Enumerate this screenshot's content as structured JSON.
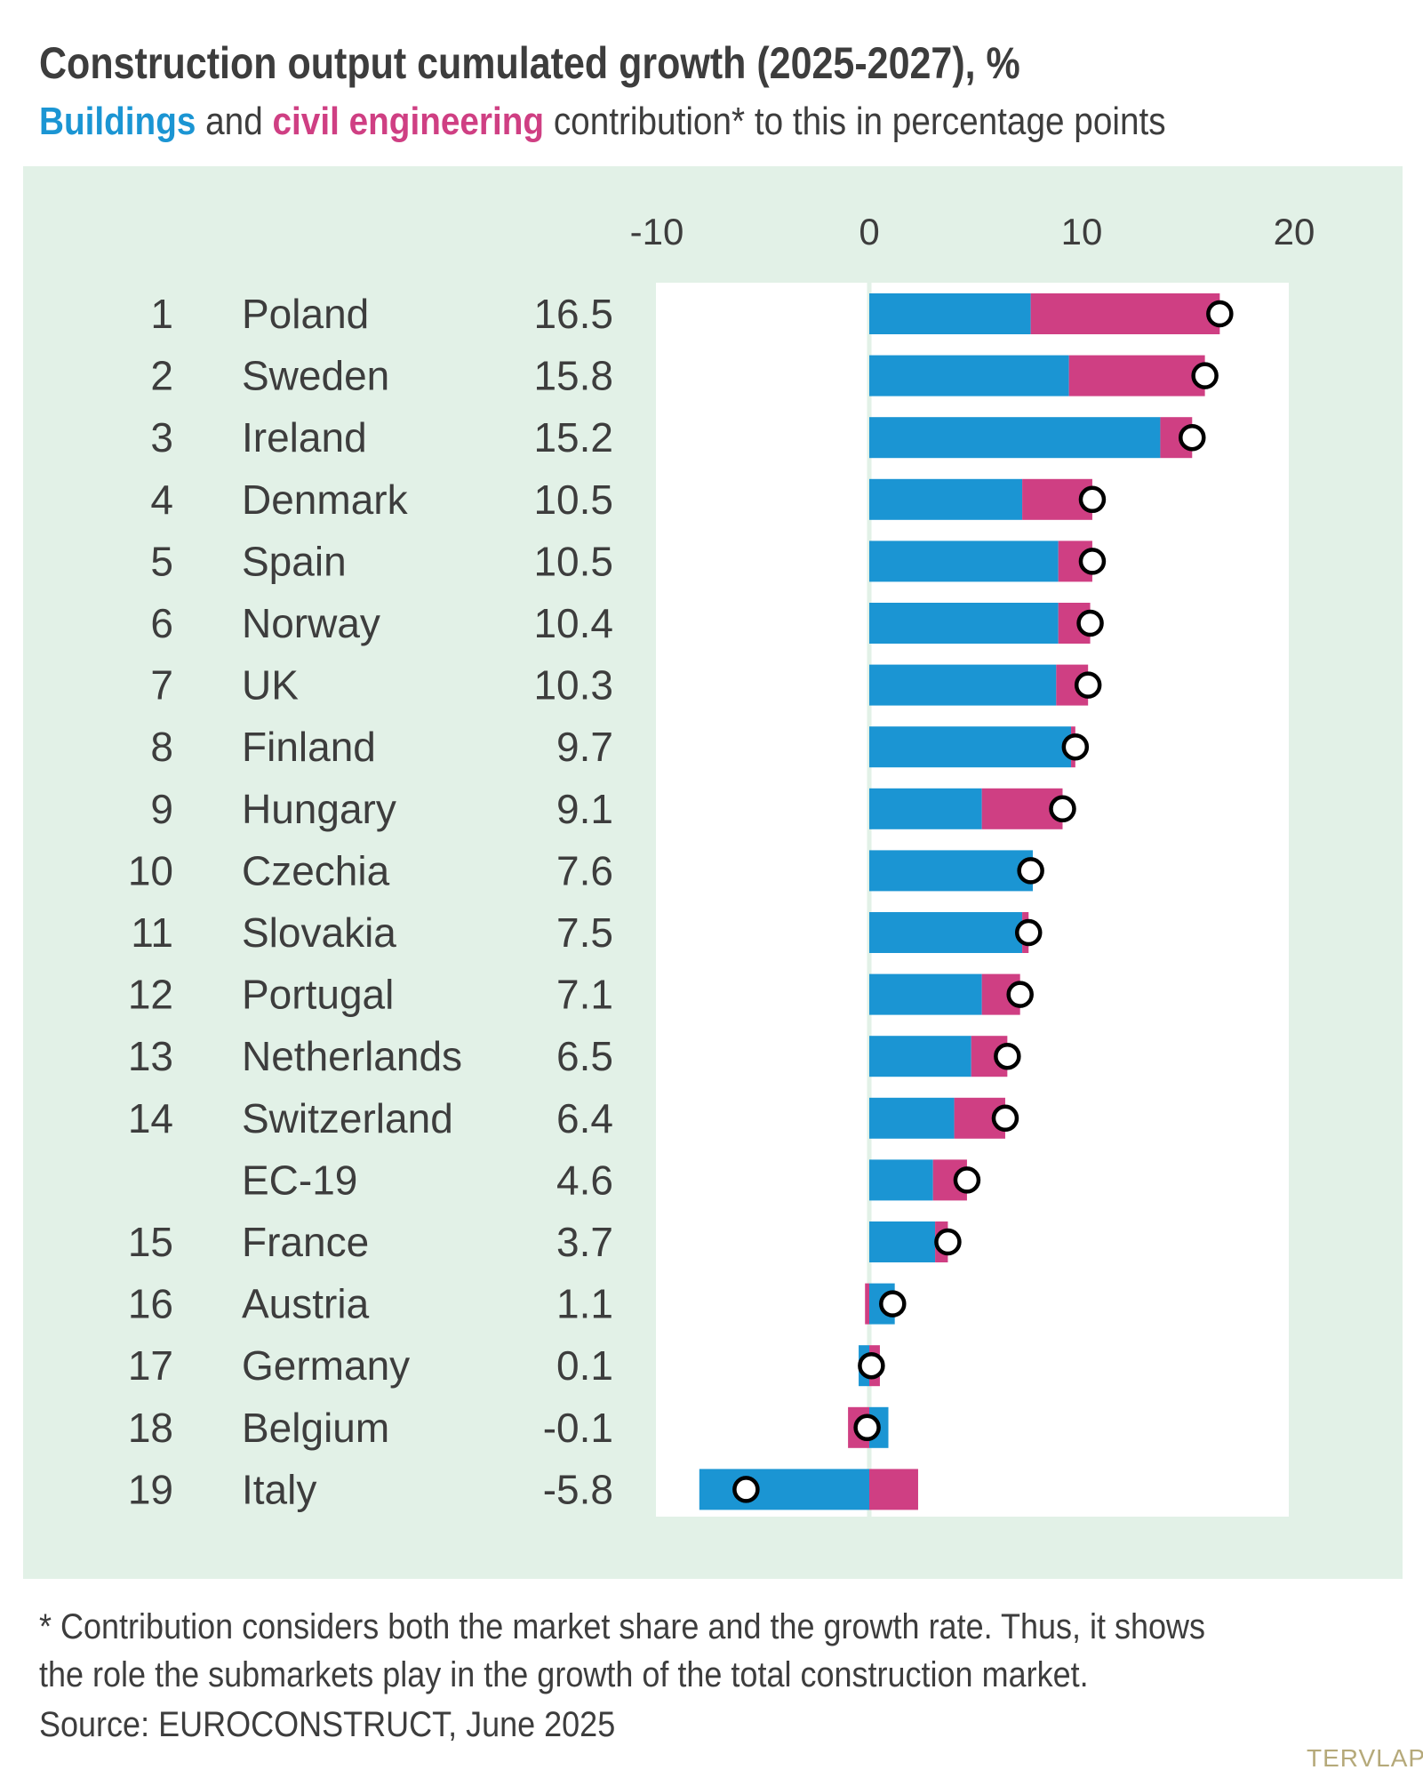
{
  "title": "Construction output cumulated growth (2025-2027), %",
  "subtitle": {
    "part_buildings": "Buildings",
    "part_and": " and ",
    "part_civil": "civil engineering",
    "part_rest": " contribution* to this in percentage points"
  },
  "footnote_line1": "* Contribution considers both the market share and the growth rate. Thus, it shows",
  "footnote_line2": "the role the submarkets play in the growth of the total construction market.",
  "source": "Source: EUROCONSTRUCT, June 2025",
  "brand": "TERVLAP",
  "colors": {
    "buildings": "#1b95d3",
    "civil": "#cf3f83",
    "panel": "#e2f1e7",
    "text": "#3d3d3d"
  },
  "chart_data": {
    "type": "bar",
    "orientation": "horizontal",
    "stacked": true,
    "xlim": [
      -10,
      20
    ],
    "xticks": [
      "-10",
      "0",
      "10",
      "20"
    ],
    "grid": false,
    "rows": [
      {
        "rank": "1",
        "country": "Poland",
        "total": "16.5"
      },
      {
        "rank": "2",
        "country": "Sweden",
        "total": "15.8"
      },
      {
        "rank": "3",
        "country": "Ireland",
        "total": "15.2"
      },
      {
        "rank": "4",
        "country": "Denmark",
        "total": "10.5"
      },
      {
        "rank": "5",
        "country": "Spain",
        "total": "10.5"
      },
      {
        "rank": "6",
        "country": "Norway",
        "total": "10.4"
      },
      {
        "rank": "7",
        "country": "UK",
        "total": "10.3"
      },
      {
        "rank": "8",
        "country": "Finland",
        "total": "9.7"
      },
      {
        "rank": "9",
        "country": "Hungary",
        "total": "9.1"
      },
      {
        "rank": "10",
        "country": "Czechia",
        "total": "7.6"
      },
      {
        "rank": "11",
        "country": "Slovakia",
        "total": "7.5"
      },
      {
        "rank": "12",
        "country": "Portugal",
        "total": "7.1"
      },
      {
        "rank": "13",
        "country": "Netherlands",
        "total": "6.5"
      },
      {
        "rank": "14",
        "country": "Switzerland",
        "total": "6.4"
      },
      {
        "rank": "",
        "country": "EC-19",
        "total": "4.6"
      },
      {
        "rank": "15",
        "country": "France",
        "total": "3.7"
      },
      {
        "rank": "16",
        "country": "Austria",
        "total": "1.1"
      },
      {
        "rank": "17",
        "country": "Germany",
        "total": "0.1"
      },
      {
        "rank": "18",
        "country": "Belgium",
        "total": "-0.1"
      },
      {
        "rank": "19",
        "country": "Italy",
        "total": "-5.8"
      }
    ],
    "series": [
      {
        "name": "Buildings",
        "values": [
          7.6,
          9.4,
          13.7,
          7.2,
          8.9,
          8.9,
          8.8,
          9.5,
          5.3,
          7.7,
          7.2,
          5.3,
          4.8,
          4.0,
          3.0,
          3.1,
          1.2,
          -0.5,
          0.9,
          -8.0
        ]
      },
      {
        "name": "civil engineering",
        "values": [
          8.9,
          6.4,
          1.5,
          3.3,
          1.6,
          1.5,
          1.5,
          0.2,
          3.8,
          0.0,
          0.3,
          1.8,
          1.7,
          2.4,
          1.6,
          0.6,
          -0.2,
          0.5,
          -1.0,
          2.3
        ]
      }
    ]
  }
}
